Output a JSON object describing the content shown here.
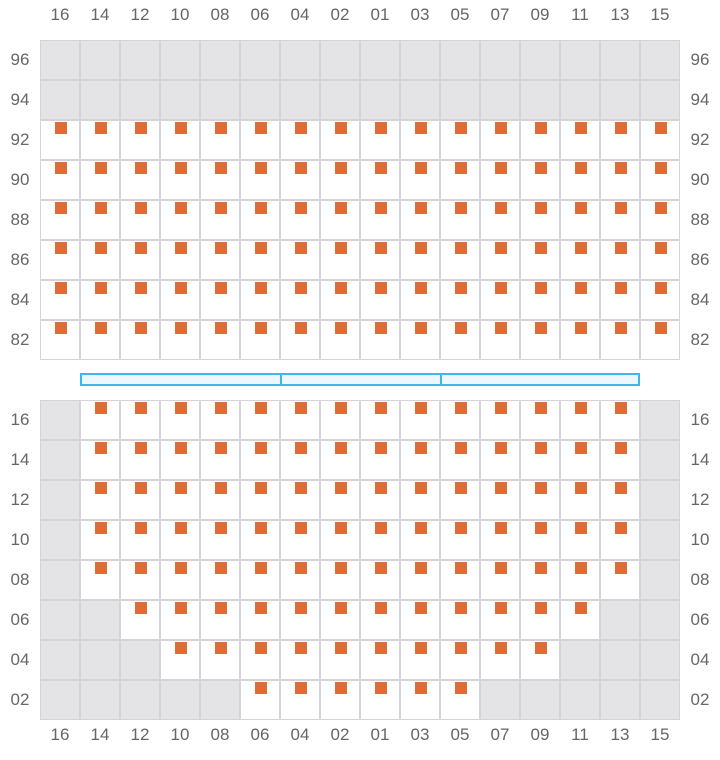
{
  "columns": [
    "16",
    "14",
    "12",
    "10",
    "08",
    "06",
    "04",
    "02",
    "01",
    "03",
    "05",
    "07",
    "09",
    "11",
    "13",
    "15"
  ],
  "colors": {
    "seat": "#e06c35",
    "unavailable": "#e4e4e6",
    "grid": "#d4d4d6",
    "stage": "#3bb8ee"
  },
  "sections": [
    {
      "rows": [
        {
          "label": "96",
          "seats": []
        },
        {
          "label": "94",
          "seats": []
        },
        {
          "label": "92",
          "seats": [
            "16",
            "14",
            "12",
            "10",
            "08",
            "06",
            "04",
            "02",
            "01",
            "03",
            "05",
            "07",
            "09",
            "11",
            "13",
            "15"
          ]
        },
        {
          "label": "90",
          "seats": [
            "16",
            "14",
            "12",
            "10",
            "08",
            "06",
            "04",
            "02",
            "01",
            "03",
            "05",
            "07",
            "09",
            "11",
            "13",
            "15"
          ]
        },
        {
          "label": "88",
          "seats": [
            "16",
            "14",
            "12",
            "10",
            "08",
            "06",
            "04",
            "02",
            "01",
            "03",
            "05",
            "07",
            "09",
            "11",
            "13",
            "15"
          ]
        },
        {
          "label": "86",
          "seats": [
            "16",
            "14",
            "12",
            "10",
            "08",
            "06",
            "04",
            "02",
            "01",
            "03",
            "05",
            "07",
            "09",
            "11",
            "13",
            "15"
          ]
        },
        {
          "label": "84",
          "seats": [
            "16",
            "14",
            "12",
            "10",
            "08",
            "06",
            "04",
            "02",
            "01",
            "03",
            "05",
            "07",
            "09",
            "11",
            "13",
            "15"
          ]
        },
        {
          "label": "82",
          "seats": [
            "16",
            "14",
            "12",
            "10",
            "08",
            "06",
            "04",
            "02",
            "01",
            "03",
            "05",
            "07",
            "09",
            "11",
            "13",
            "15"
          ]
        }
      ]
    },
    {
      "rows": [
        {
          "label": "16",
          "seats": [
            "14",
            "12",
            "10",
            "08",
            "06",
            "04",
            "02",
            "01",
            "03",
            "05",
            "07",
            "09",
            "11",
            "13"
          ]
        },
        {
          "label": "14",
          "seats": [
            "14",
            "12",
            "10",
            "08",
            "06",
            "04",
            "02",
            "01",
            "03",
            "05",
            "07",
            "09",
            "11",
            "13"
          ]
        },
        {
          "label": "12",
          "seats": [
            "14",
            "12",
            "10",
            "08",
            "06",
            "04",
            "02",
            "01",
            "03",
            "05",
            "07",
            "09",
            "11",
            "13"
          ]
        },
        {
          "label": "10",
          "seats": [
            "14",
            "12",
            "10",
            "08",
            "06",
            "04",
            "02",
            "01",
            "03",
            "05",
            "07",
            "09",
            "11",
            "13"
          ]
        },
        {
          "label": "08",
          "seats": [
            "14",
            "12",
            "10",
            "08",
            "06",
            "04",
            "02",
            "01",
            "03",
            "05",
            "07",
            "09",
            "11",
            "13"
          ]
        },
        {
          "label": "06",
          "seats": [
            "12",
            "10",
            "08",
            "06",
            "04",
            "02",
            "01",
            "03",
            "05",
            "07",
            "09",
            "11"
          ]
        },
        {
          "label": "04",
          "seats": [
            "10",
            "08",
            "06",
            "04",
            "02",
            "01",
            "03",
            "05",
            "07",
            "09"
          ]
        },
        {
          "label": "02",
          "seats": [
            "06",
            "04",
            "02",
            "01",
            "03",
            "05"
          ]
        }
      ]
    }
  ]
}
